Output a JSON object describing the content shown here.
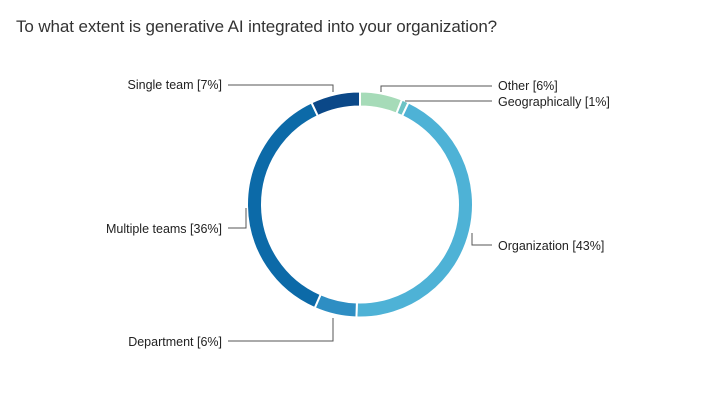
{
  "title": "To what extent is generative AI integrated into your organization?",
  "chart_data": {
    "type": "pie",
    "subtype": "donut",
    "title": "To what extent is generative AI integrated into your organization?",
    "categories": [
      "Other",
      "Geographically",
      "Organization",
      "Department",
      "Multiple teams",
      "Single team"
    ],
    "values": [
      6,
      1,
      43,
      6,
      36,
      7
    ],
    "unit": "%",
    "labels": [
      "Other [6%]",
      "Geographically [1%]",
      "Organization [43%]",
      "Department [6%]",
      "Multiple teams [36%]",
      "Single team [7%]"
    ],
    "colors": [
      "#a6dbb8",
      "#6cc3c5",
      "#4eb2d6",
      "#2e8ec3",
      "#0c6aa8",
      "#0b4888"
    ],
    "start_angle_deg": 0,
    "direction": "clockwise",
    "legend": "none (leader-line labels)"
  }
}
